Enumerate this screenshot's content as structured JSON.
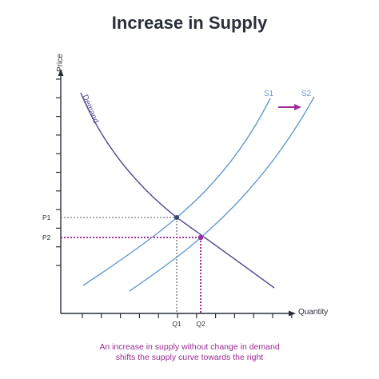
{
  "title": "Increase in Supply",
  "axes": {
    "y_label": "Price",
    "x_label": "Quantity"
  },
  "curves": {
    "demand_label": "Demand",
    "s1_label": "S1",
    "s2_label": "S2"
  },
  "equilibrium": {
    "p1": "P1",
    "p2": "P2",
    "q1": "Q1",
    "q2": "Q2"
  },
  "caption": {
    "line1": "An increase in supply without change in demand",
    "line2": "shifts the supply curve towards the right"
  },
  "colors": {
    "axis": "#2b2f38",
    "demand": "#5b4f96",
    "supply": "#6a9ed2",
    "accent": "#a22b9a",
    "guide_grey": "#8a8d93"
  }
}
